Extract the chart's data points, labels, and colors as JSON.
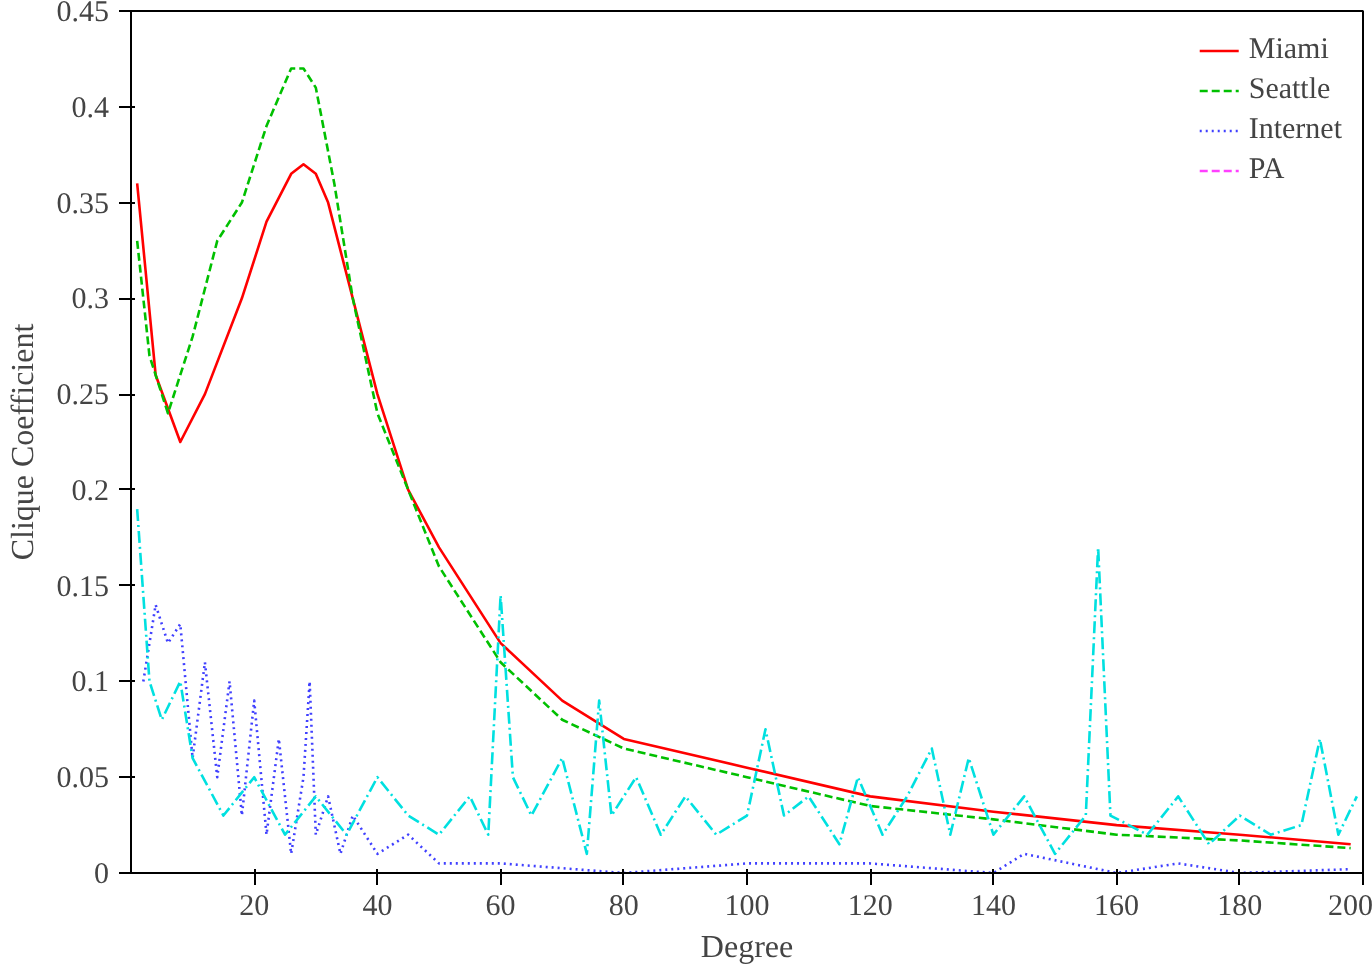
{
  "chart_data": {
    "type": "line",
    "xlabel": "Degree",
    "ylabel": "Clique Coefficient",
    "xlim": [
      0,
      200
    ],
    "xticks": [
      20,
      40,
      60,
      80,
      100,
      120,
      140,
      160,
      180,
      200
    ],
    "ylim": [
      0,
      0.45
    ],
    "yticks": [
      0,
      0.05,
      0.1,
      0.15,
      0.2,
      0.25,
      0.3,
      0.35,
      0.4,
      0.45
    ],
    "grid": false,
    "legend": "top right",
    "marker": "none",
    "series": [
      {
        "name": "Miami",
        "color": "#ff0000",
        "line_style": "solid",
        "x": [
          1,
          4,
          8,
          12,
          18,
          22,
          26,
          28,
          30,
          32,
          36,
          40,
          45,
          50,
          60,
          70,
          80,
          100,
          120,
          140,
          160,
          180,
          198
        ],
        "values": [
          0.36,
          0.26,
          0.225,
          0.25,
          0.3,
          0.34,
          0.365,
          0.37,
          0.365,
          0.35,
          0.3,
          0.25,
          0.2,
          0.17,
          0.12,
          0.09,
          0.07,
          0.055,
          0.04,
          0.032,
          0.025,
          0.02,
          0.015
        ]
      },
      {
        "name": "Seattle",
        "color": "#00c000",
        "line_style": "dashed",
        "x": [
          1,
          3,
          6,
          10,
          14,
          18,
          22,
          26,
          28,
          30,
          33,
          36,
          40,
          45,
          50,
          60,
          70,
          80,
          100,
          120,
          140,
          160,
          180,
          198
        ],
        "values": [
          0.33,
          0.27,
          0.24,
          0.28,
          0.33,
          0.35,
          0.39,
          0.42,
          0.42,
          0.41,
          0.36,
          0.3,
          0.24,
          0.2,
          0.16,
          0.11,
          0.08,
          0.065,
          0.05,
          0.035,
          0.028,
          0.02,
          0.017,
          0.013
        ]
      },
      {
        "name": "Internet",
        "color": "#4040ff",
        "line_style": "dotted",
        "x": [
          2,
          4,
          6,
          8,
          10,
          12,
          14,
          16,
          18,
          20,
          22,
          24,
          26,
          28,
          29,
          30,
          32,
          34,
          36,
          40,
          45,
          50,
          60,
          80,
          100,
          120,
          140,
          145,
          160,
          170,
          180,
          198
        ],
        "values": [
          0.1,
          0.14,
          0.12,
          0.13,
          0.06,
          0.11,
          0.05,
          0.1,
          0.03,
          0.09,
          0.02,
          0.07,
          0.01,
          0.05,
          0.1,
          0.02,
          0.04,
          0.01,
          0.03,
          0.01,
          0.02,
          0.005,
          0.005,
          0,
          0.005,
          0.005,
          0,
          0.01,
          0,
          0.005,
          0,
          0.002
        ]
      },
      {
        "name": "PA",
        "color": "#ff40ff",
        "line_style": "dashed"
      },
      {
        "color": "#00e0e0",
        "line_style": "dashdot",
        "x": [
          1,
          3,
          5,
          8,
          10,
          15,
          20,
          25,
          30,
          35,
          40,
          45,
          50,
          55,
          58,
          60,
          62,
          65,
          70,
          74,
          76,
          78,
          82,
          86,
          90,
          95,
          100,
          103,
          106,
          110,
          115,
          118,
          122,
          126,
          130,
          133,
          136,
          140,
          145,
          150,
          155,
          157,
          159,
          165,
          170,
          175,
          180,
          185,
          190,
          193,
          196,
          199
        ],
        "values": [
          0.19,
          0.1,
          0.08,
          0.1,
          0.06,
          0.03,
          0.05,
          0.02,
          0.04,
          0.02,
          0.05,
          0.03,
          0.02,
          0.04,
          0.02,
          0.145,
          0.05,
          0.03,
          0.06,
          0.01,
          0.09,
          0.03,
          0.05,
          0.02,
          0.04,
          0.02,
          0.03,
          0.075,
          0.03,
          0.04,
          0.015,
          0.05,
          0.02,
          0.04,
          0.065,
          0.02,
          0.06,
          0.02,
          0.04,
          0.01,
          0.03,
          0.17,
          0.03,
          0.02,
          0.04,
          0.015,
          0.03,
          0.02,
          0.025,
          0.07,
          0.02,
          0.04
        ]
      }
    ]
  }
}
